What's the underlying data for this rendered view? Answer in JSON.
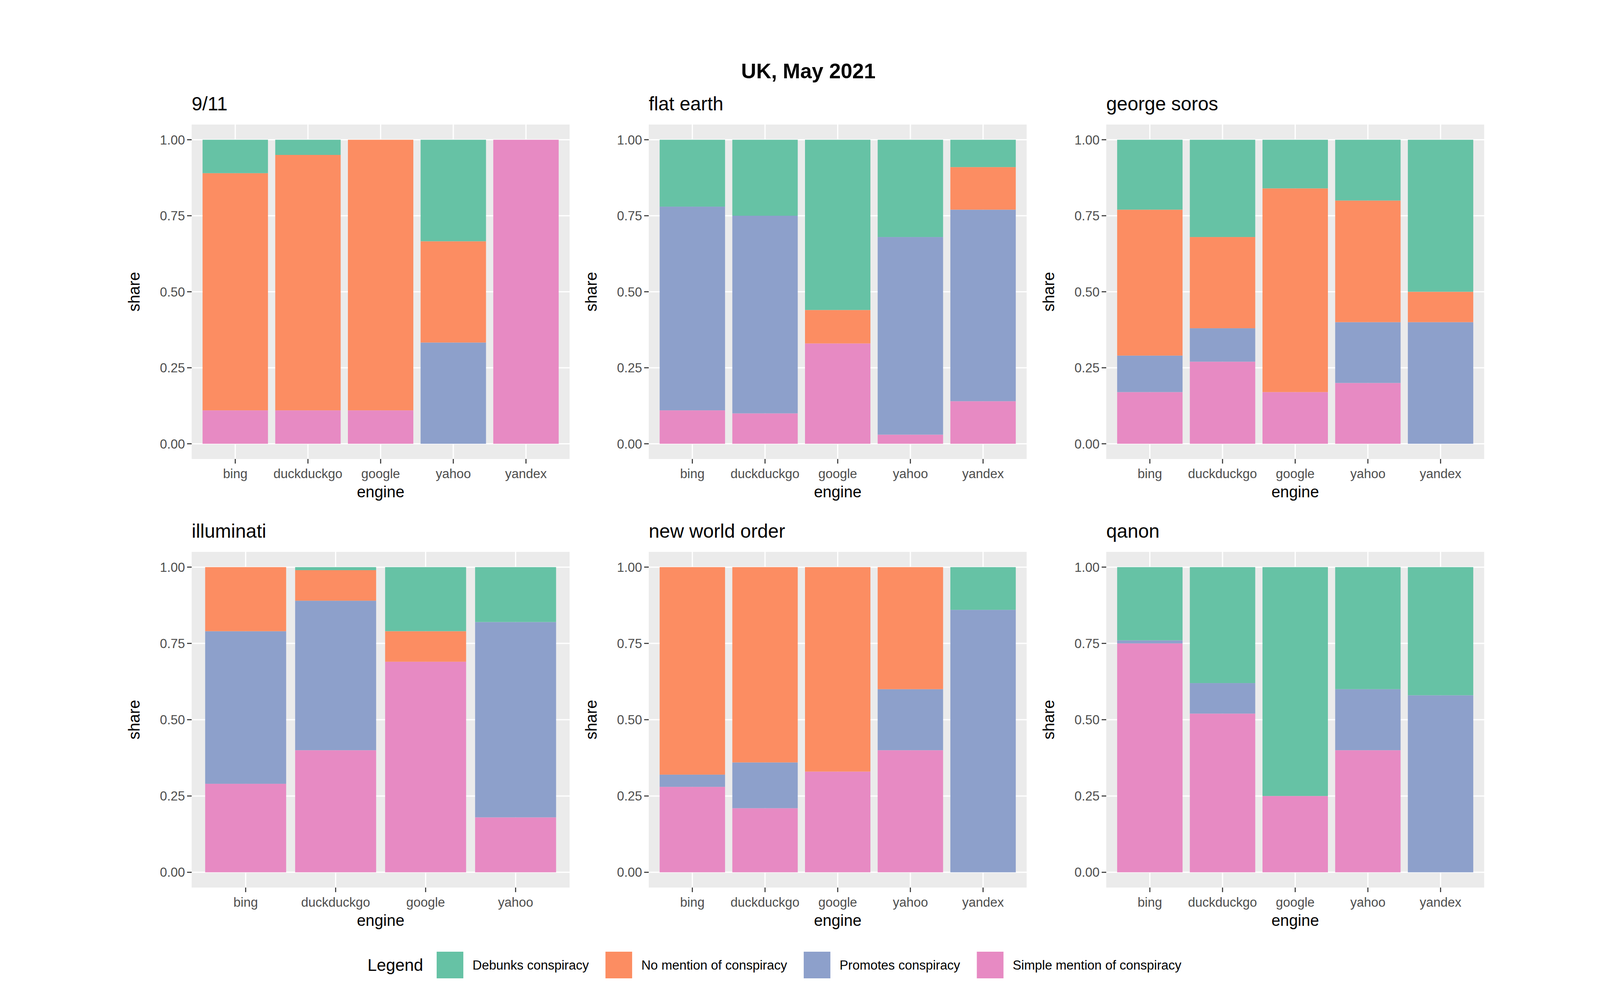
{
  "title": "UK, May 2021",
  "legend_title": "Legend",
  "chart_data": [
    {
      "type": "bar",
      "stacked": true,
      "grid": true,
      "legend": "bottom",
      "title": "9/11",
      "x_label": "engine",
      "y_label": "share",
      "categories": [
        "bing",
        "duckduckgo",
        "google",
        "yahoo",
        "yandex"
      ],
      "series": [
        {
          "name": "Simple mention of conspiracy",
          "color": "#e78ac3",
          "values": [
            0.11,
            0.11,
            0.11,
            0,
            1
          ]
        },
        {
          "name": "Promotes conspiracy",
          "color": "#8da0cb",
          "values": [
            0,
            0,
            0,
            0.333,
            0
          ]
        },
        {
          "name": "No mention of conspiracy",
          "color": "#fc8d62",
          "values": [
            0.78,
            0.84,
            0.89,
            0.333,
            0
          ]
        },
        {
          "name": "Debunks conspiracy",
          "color": "#66c2a5",
          "values": [
            0.11,
            0.05,
            0,
            0.334,
            0
          ]
        }
      ],
      "ylim": [
        -0.05,
        1.05
      ],
      "yticks": [
        {
          "value": 0,
          "label": "0.00"
        },
        {
          "value": 0.25,
          "label": "0.25"
        },
        {
          "value": 0.5,
          "label": "0.50"
        },
        {
          "value": 0.75,
          "label": "0.75"
        },
        {
          "value": 1,
          "label": "1.00"
        }
      ]
    },
    {
      "type": "bar",
      "stacked": true,
      "grid": true,
      "title": "flat earth",
      "x_label": "engine",
      "y_label": "share",
      "categories": [
        "bing",
        "duckduckgo",
        "google",
        "yahoo",
        "yandex"
      ],
      "series": [
        {
          "name": "Simple mention of conspiracy",
          "color": "#e78ac3",
          "values": [
            0.11,
            0.1,
            0.33,
            0.03,
            0.14
          ]
        },
        {
          "name": "Promotes conspiracy",
          "color": "#8da0cb",
          "values": [
            0.67,
            0.65,
            0,
            0.65,
            0.63
          ]
        },
        {
          "name": "No mention of conspiracy",
          "color": "#fc8d62",
          "values": [
            0,
            0,
            0.11,
            0,
            0.14
          ]
        },
        {
          "name": "Debunks conspiracy",
          "color": "#66c2a5",
          "values": [
            0.22,
            0.25,
            0.56,
            0.32,
            0.09
          ]
        }
      ],
      "ylim": [
        -0.05,
        1.05
      ],
      "yticks": [
        {
          "value": 0,
          "label": "0.00"
        },
        {
          "value": 0.25,
          "label": "0.25"
        },
        {
          "value": 0.5,
          "label": "0.50"
        },
        {
          "value": 0.75,
          "label": "0.75"
        },
        {
          "value": 1,
          "label": "1.00"
        }
      ]
    },
    {
      "type": "bar",
      "stacked": true,
      "grid": true,
      "title": "george soros",
      "x_label": "engine",
      "y_label": "share",
      "categories": [
        "bing",
        "duckduckgo",
        "google",
        "yahoo",
        "yandex"
      ],
      "series": [
        {
          "name": "Simple mention of conspiracy",
          "color": "#e78ac3",
          "values": [
            0.17,
            0.27,
            0.17,
            0.2,
            0
          ]
        },
        {
          "name": "Promotes conspiracy",
          "color": "#8da0cb",
          "values": [
            0.12,
            0.11,
            0,
            0.2,
            0.4
          ]
        },
        {
          "name": "No mention of conspiracy",
          "color": "#fc8d62",
          "values": [
            0.48,
            0.3,
            0.67,
            0.4,
            0.1
          ]
        },
        {
          "name": "Debunks conspiracy",
          "color": "#66c2a5",
          "values": [
            0.23,
            0.32,
            0.16,
            0.2,
            0.5
          ]
        }
      ],
      "ylim": [
        -0.05,
        1.05
      ],
      "yticks": [
        {
          "value": 0,
          "label": "0.00"
        },
        {
          "value": 0.25,
          "label": "0.25"
        },
        {
          "value": 0.5,
          "label": "0.50"
        },
        {
          "value": 0.75,
          "label": "0.75"
        },
        {
          "value": 1,
          "label": "1.00"
        }
      ]
    },
    {
      "type": "bar",
      "stacked": true,
      "grid": true,
      "title": "illuminati",
      "x_label": "engine",
      "y_label": "share",
      "categories": [
        "bing",
        "duckduckgo",
        "google",
        "yahoo"
      ],
      "series": [
        {
          "name": "Simple mention of conspiracy",
          "color": "#e78ac3",
          "values": [
            0.29,
            0.4,
            0.69,
            0.18
          ]
        },
        {
          "name": "Promotes conspiracy",
          "color": "#8da0cb",
          "values": [
            0.5,
            0.49,
            0,
            0.64
          ]
        },
        {
          "name": "No mention of conspiracy",
          "color": "#fc8d62",
          "values": [
            0.21,
            0.1,
            0.1,
            0
          ]
        },
        {
          "name": "Debunks conspiracy",
          "color": "#66c2a5",
          "values": [
            0,
            0.01,
            0.21,
            0.18
          ]
        }
      ],
      "ylim": [
        -0.05,
        1.05
      ],
      "yticks": [
        {
          "value": 0,
          "label": "0.00"
        },
        {
          "value": 0.25,
          "label": "0.25"
        },
        {
          "value": 0.5,
          "label": "0.50"
        },
        {
          "value": 0.75,
          "label": "0.75"
        },
        {
          "value": 1,
          "label": "1.00"
        }
      ]
    },
    {
      "type": "bar",
      "stacked": true,
      "grid": true,
      "title": "new world order",
      "x_label": "engine",
      "y_label": "share",
      "categories": [
        "bing",
        "duckduckgo",
        "google",
        "yahoo",
        "yandex"
      ],
      "series": [
        {
          "name": "Simple mention of conspiracy",
          "color": "#e78ac3",
          "values": [
            0.28,
            0.21,
            0.33,
            0.4,
            0
          ]
        },
        {
          "name": "Promotes conspiracy",
          "color": "#8da0cb",
          "values": [
            0.04,
            0.15,
            0,
            0.2,
            0.86
          ]
        },
        {
          "name": "No mention of conspiracy",
          "color": "#fc8d62",
          "values": [
            0.68,
            0.64,
            0.67,
            0.4,
            0
          ]
        },
        {
          "name": "Debunks conspiracy",
          "color": "#66c2a5",
          "values": [
            0,
            0,
            0,
            0,
            0.14
          ]
        }
      ],
      "ylim": [
        -0.05,
        1.05
      ],
      "yticks": [
        {
          "value": 0,
          "label": "0.00"
        },
        {
          "value": 0.25,
          "label": "0.25"
        },
        {
          "value": 0.5,
          "label": "0.50"
        },
        {
          "value": 0.75,
          "label": "0.75"
        },
        {
          "value": 1,
          "label": "1.00"
        }
      ]
    },
    {
      "type": "bar",
      "stacked": true,
      "grid": true,
      "title": "qanon",
      "x_label": "engine",
      "y_label": "share",
      "categories": [
        "bing",
        "duckduckgo",
        "google",
        "yahoo",
        "yandex"
      ],
      "series": [
        {
          "name": "Simple mention of conspiracy",
          "color": "#e78ac3",
          "values": [
            0.75,
            0.52,
            0.25,
            0.4,
            0
          ]
        },
        {
          "name": "Promotes conspiracy",
          "color": "#8da0cb",
          "values": [
            0.01,
            0.1,
            0,
            0.2,
            0.58
          ]
        },
        {
          "name": "No mention of conspiracy",
          "color": "#fc8d62",
          "values": [
            0,
            0,
            0,
            0,
            0
          ]
        },
        {
          "name": "Debunks conspiracy",
          "color": "#66c2a5",
          "values": [
            0.24,
            0.38,
            0.75,
            0.4,
            0.42
          ]
        }
      ],
      "ylim": [
        -0.05,
        1.05
      ],
      "yticks": [
        {
          "value": 0,
          "label": "0.00"
        },
        {
          "value": 0.25,
          "label": "0.25"
        },
        {
          "value": 0.5,
          "label": "0.50"
        },
        {
          "value": 0.75,
          "label": "0.75"
        },
        {
          "value": 1,
          "label": "1.00"
        }
      ]
    }
  ]
}
